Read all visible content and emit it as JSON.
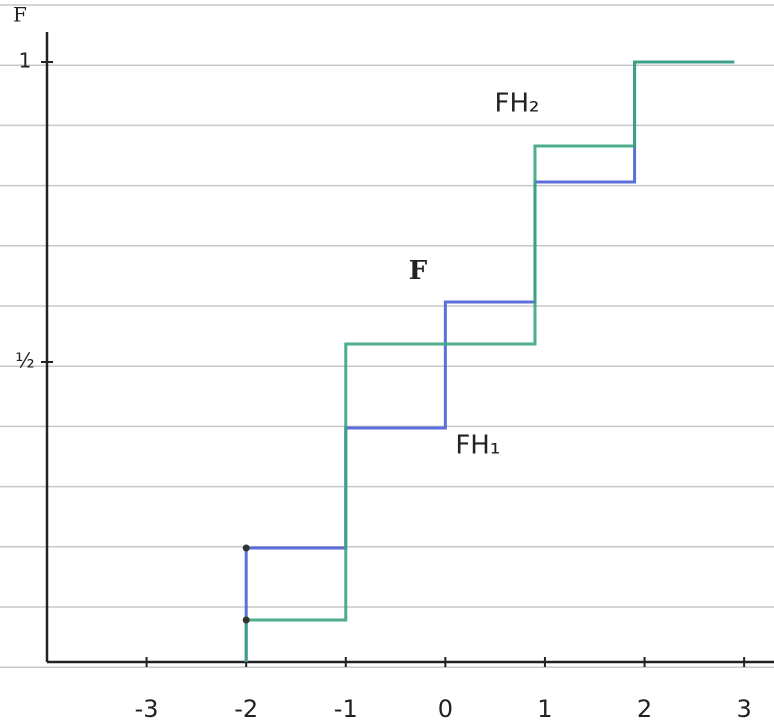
{
  "chart_data": {
    "type": "step",
    "y_label": "F",
    "annotation": "F",
    "xlim": [
      -4,
      3.3
    ],
    "ylim": [
      0,
      1.05
    ],
    "xticks": [
      -3,
      -2,
      -1,
      0,
      1,
      2,
      3
    ],
    "yticks": [
      {
        "value": 0.5,
        "label": "½"
      },
      {
        "value": 1,
        "label": "1"
      }
    ],
    "series": [
      {
        "name": "FH₁",
        "color": "#4a5fd6",
        "x": [
          -2,
          -1,
          0,
          0.9,
          1.9,
          2.9
        ],
        "values": [
          0.19,
          0.39,
          0.6,
          0.8,
          1,
          1
        ]
      },
      {
        "name": "FH₂",
        "color": "#3aa57c",
        "x": [
          -2,
          -1,
          0.9,
          1.9,
          2.9
        ],
        "values": [
          0.07,
          0.53,
          0.86,
          1,
          1
        ]
      }
    ]
  }
}
